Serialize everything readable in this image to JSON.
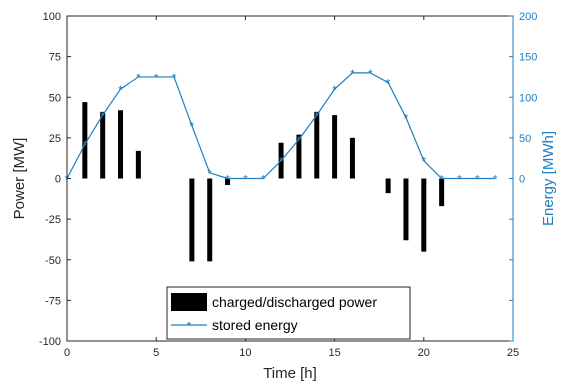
{
  "chart_data": {
    "type": "bar+line",
    "xlabel": "Time [h]",
    "ylabel_left": "Power [MW]",
    "ylabel_right": "Energy [MWh]",
    "xlim": [
      0,
      25
    ],
    "ylim_left": [
      -100,
      100
    ],
    "ylim_right": [
      -200,
      200
    ],
    "x_ticks": [
      0,
      5,
      10,
      15,
      20,
      25
    ],
    "y_left_ticks": [
      -100,
      -75,
      -50,
      -25,
      0,
      25,
      50,
      75,
      100
    ],
    "y_right_ticks": [
      0,
      50,
      100,
      150,
      200
    ],
    "grid": false,
    "legend_position": "bottom-center",
    "colors": {
      "bars": "#000000",
      "line": "#1f7fbf",
      "right_axis": "#1f7fbf"
    },
    "series": [
      {
        "name": "charged/discharged power",
        "type": "bar",
        "axis": "left",
        "x": [
          1,
          2,
          3,
          4,
          7,
          8,
          9,
          12,
          13,
          14,
          15,
          16,
          18,
          19,
          20,
          21
        ],
        "values": [
          47,
          41,
          42,
          17,
          -51,
          -51,
          -4,
          22,
          27,
          41,
          39,
          25,
          -9,
          -38,
          -45,
          -17
        ]
      },
      {
        "name": "stored energy",
        "type": "line",
        "axis": "right",
        "x": [
          0,
          1,
          2,
          3,
          4,
          5,
          6,
          7,
          8,
          9,
          10,
          11,
          12,
          13,
          14,
          15,
          16,
          17,
          18,
          19,
          20,
          21,
          22,
          23,
          24
        ],
        "values": [
          0,
          42,
          78,
          110,
          125,
          125,
          125,
          65,
          7,
          0,
          0,
          0,
          22,
          48,
          78,
          110,
          130,
          130,
          118,
          75,
          22,
          0,
          0,
          0,
          0
        ]
      }
    ]
  }
}
